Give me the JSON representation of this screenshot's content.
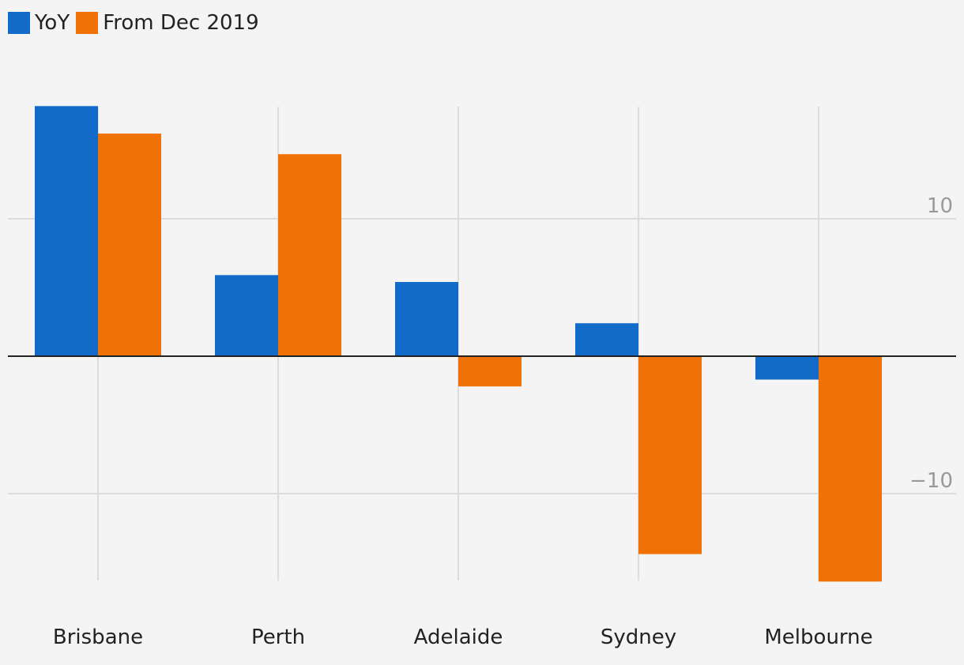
{
  "colors": {
    "background": "#f4f4f4",
    "yoy": "#126bc9",
    "dec2019": "#f07207",
    "grid": "#dcdcdc",
    "zero_line": "#222222",
    "tick_text": "#999999",
    "label_text": "#222222"
  },
  "legend": {
    "items": [
      {
        "label": "YoY",
        "color": "#126bc9"
      },
      {
        "label": "From Dec 2019",
        "color": "#f07207"
      }
    ]
  },
  "chart_data": {
    "type": "bar",
    "title": "",
    "xlabel": "",
    "ylabel": "",
    "categories": [
      "Brisbane",
      "Perth",
      "Adelaide",
      "Sydney",
      "Melbourne"
    ],
    "series": [
      {
        "name": "YoY",
        "values": [
          18.2,
          5.9,
          5.4,
          2.4,
          -1.7
        ]
      },
      {
        "name": "From Dec 2019",
        "values": [
          16.2,
          14.7,
          -2.2,
          -14.4,
          -16.4
        ]
      }
    ],
    "ylim": [
      -16.4,
      18.2
    ],
    "yticks": [
      {
        "value": 10,
        "label": "10"
      },
      {
        "value": -10,
        "label": "−10"
      }
    ],
    "grid": true,
    "legend_position": "top-left"
  }
}
